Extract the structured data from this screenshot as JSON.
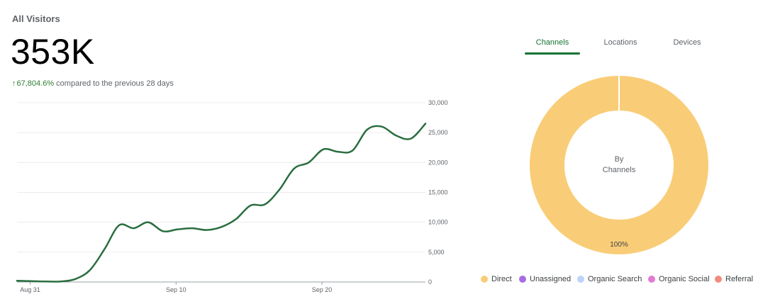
{
  "header": {
    "title": "All Visitors",
    "value": "353K",
    "change": "67,804.6%",
    "change_suffix": "compared to the previous 28 days",
    "arrow": "↑"
  },
  "tabs": [
    {
      "label": "Channels",
      "active": true
    },
    {
      "label": "Locations",
      "active": false
    },
    {
      "label": "Devices",
      "active": false
    }
  ],
  "colors": {
    "line": "#2a6e3f",
    "accent": "#137333",
    "up": "#2e7d32"
  },
  "chart_data": [
    {
      "type": "line",
      "x_ticks": [
        "Aug 31",
        "Sep 10",
        "Sep 20"
      ],
      "y_ticks": [
        "0",
        "5,000",
        "10,000",
        "15,000",
        "20,000",
        "25,000",
        "30,000"
      ],
      "ylim": [
        0,
        30000
      ],
      "grid": true,
      "series": [
        {
          "values": [
            200,
            150,
            80,
            100,
            500,
            2000,
            5500,
            9500,
            9000,
            10000,
            8500,
            8800,
            9000,
            8700,
            9200,
            10500,
            12800,
            13000,
            15500,
            19000,
            20000,
            22200,
            21800,
            22000,
            25500,
            26000,
            24500,
            24000,
            26500
          ]
        }
      ]
    },
    {
      "type": "pie",
      "center_label": [
        "By",
        "Channels"
      ],
      "categories": [
        "Direct",
        "Unassigned",
        "Organic Search",
        "Organic Social",
        "Referral"
      ],
      "values": [
        100,
        0,
        0,
        0,
        0
      ],
      "slice_label": "100%",
      "colors": [
        "#f9cd77",
        "#a66de3",
        "#bcd3fb",
        "#e27ad5",
        "#f28b7d"
      ],
      "legend": "bottom"
    }
  ]
}
